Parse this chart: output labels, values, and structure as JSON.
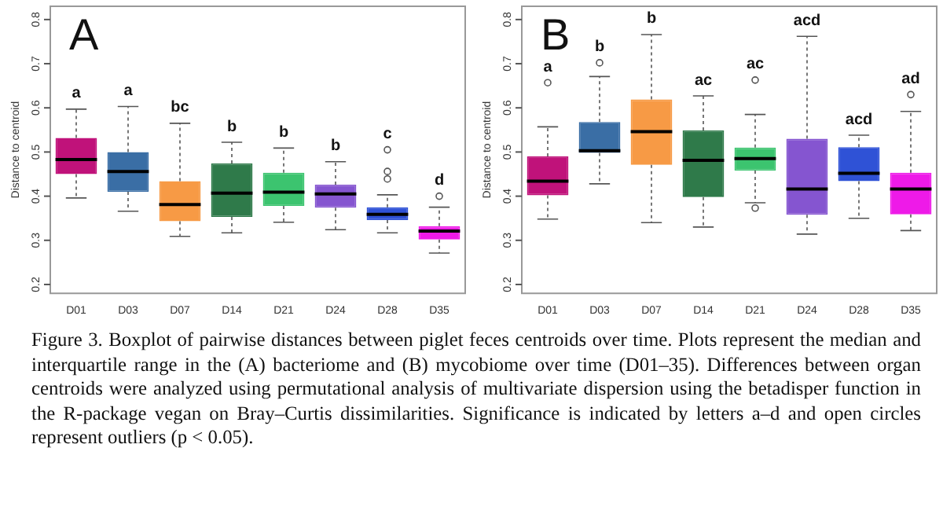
{
  "chart_data": [
    {
      "type": "box",
      "title": "A",
      "ylabel": "Distance to centroid",
      "categories": [
        "D01",
        "D03",
        "D07",
        "D14",
        "D21",
        "D24",
        "D28",
        "D35"
      ],
      "colors": [
        "#c0127a",
        "#3a6ea5",
        "#f79a45",
        "#2f7a4a",
        "#3cc46f",
        "#8555d0",
        "#2f52d6",
        "#ee1ae8"
      ],
      "boxes": [
        {
          "low": 0.396,
          "q1": 0.45,
          "median": 0.483,
          "q3": 0.532,
          "high": 0.597
        },
        {
          "low": 0.366,
          "q1": 0.41,
          "median": 0.456,
          "q3": 0.5,
          "high": 0.603
        },
        {
          "low": 0.309,
          "q1": 0.343,
          "median": 0.381,
          "q3": 0.434,
          "high": 0.565
        },
        {
          "low": 0.317,
          "q1": 0.353,
          "median": 0.407,
          "q3": 0.474,
          "high": 0.522
        },
        {
          "low": 0.341,
          "q1": 0.378,
          "median": 0.409,
          "q3": 0.453,
          "high": 0.509
        },
        {
          "low": 0.324,
          "q1": 0.374,
          "median": 0.405,
          "q3": 0.426,
          "high": 0.478
        },
        {
          "low": 0.317,
          "q1": 0.346,
          "median": 0.359,
          "q3": 0.375,
          "high": 0.403,
          "outliers": [
            0.505,
            0.456,
            0.439
          ]
        },
        {
          "low": 0.271,
          "q1": 0.302,
          "median": 0.321,
          "q3": 0.332,
          "high": 0.375,
          "outliers": [
            0.4
          ]
        }
      ],
      "ylim": [
        0.18,
        0.83
      ],
      "yticks": [
        0.2,
        0.3,
        0.4,
        0.5,
        0.6,
        0.7,
        0.8
      ],
      "annotations": [
        "a",
        "a",
        "bc",
        "b",
        "b",
        "b",
        "c",
        "d",
        "Figure 3. Boxplot of pairwise distances between piglet feces centroids over time. Plots represent the median and interquartile range in the (A) bacteriome and (B) mycobiome over time (D01–35). Differences between organ centroids were analyzed using permutational analysis of multivariate dispersion using the betadisper function in the R-package vegan on Bray–Curtis dissimilarities. Significance is indicated by letters a–d and open circles represent outliers (p < 0.05)."
      ]
    },
    {
      "type": "box",
      "title": "B",
      "ylabel": "Distance to centroid",
      "categories": [
        "D01",
        "D03",
        "D07",
        "D14",
        "D21",
        "D24",
        "D28",
        "D35"
      ],
      "colors": [
        "#c0127a",
        "#3a6ea5",
        "#f79a45",
        "#2f7a4a",
        "#3cc46f",
        "#8555d0",
        "#2f52d6",
        "#ee1ae8"
      ],
      "boxes": [
        {
          "low": 0.348,
          "q1": 0.402,
          "median": 0.434,
          "q3": 0.49,
          "high": 0.557,
          "outliers": [
            0.657
          ]
        },
        {
          "low": 0.428,
          "q1": 0.498,
          "median": 0.503,
          "q3": 0.568,
          "high": 0.671,
          "outliers": [
            0.702
          ]
        },
        {
          "low": 0.34,
          "q1": 0.471,
          "median": 0.546,
          "q3": 0.619,
          "high": 0.766
        },
        {
          "low": 0.33,
          "q1": 0.398,
          "median": 0.481,
          "q3": 0.549,
          "high": 0.627
        },
        {
          "low": 0.385,
          "q1": 0.458,
          "median": 0.485,
          "q3": 0.51,
          "high": 0.585,
          "outliers": [
            0.663,
            0.373
          ]
        },
        {
          "low": 0.314,
          "q1": 0.358,
          "median": 0.416,
          "q3": 0.53,
          "high": 0.762
        },
        {
          "low": 0.35,
          "q1": 0.434,
          "median": 0.452,
          "q3": 0.511,
          "high": 0.538
        },
        {
          "low": 0.322,
          "q1": 0.359,
          "median": 0.416,
          "q3": 0.453,
          "high": 0.592,
          "outliers": [
            0.63
          ]
        }
      ],
      "ylim": [
        0.18,
        0.83
      ],
      "yticks": [
        0.2,
        0.3,
        0.4,
        0.5,
        0.6,
        0.7,
        0.8
      ],
      "annotations": [
        "a",
        "b",
        "b",
        "ac",
        "ac",
        "acd",
        "acd",
        "ad"
      ]
    }
  ]
}
